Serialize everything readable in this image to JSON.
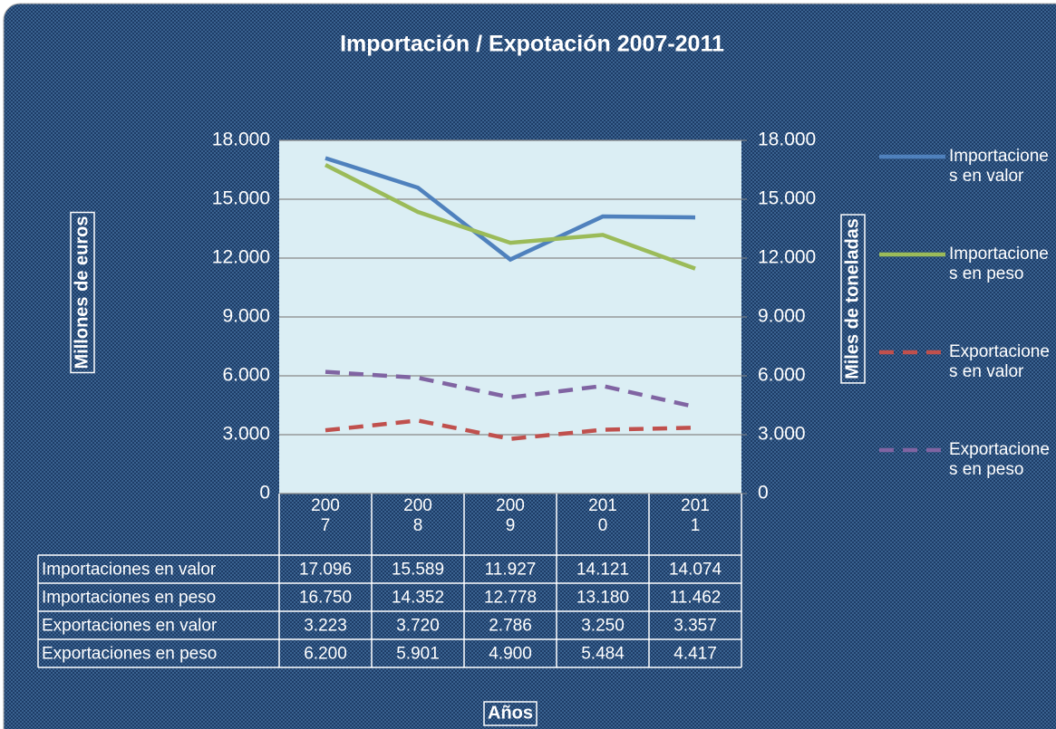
{
  "chart_data": {
    "type": "line",
    "title": "Importación / Expotación 2007-2011",
    "x_label": "Años",
    "y_label": "Millones de euros",
    "y2_label": "Miles de toneladas",
    "categories": [
      "2007",
      "2008",
      "2009",
      "2010",
      "2011"
    ],
    "series": [
      {
        "name": "Importaciones en valor",
        "color": "#4f81bd",
        "dashed": false,
        "values": [
          17096,
          15589,
          11927,
          14121,
          14074
        ],
        "value_labels": [
          "17.096",
          "15.589",
          "11.927",
          "14.121",
          "14.074"
        ]
      },
      {
        "name": "Importaciones en peso",
        "color": "#9bbb59",
        "dashed": false,
        "axis": "y2",
        "values": [
          16750,
          14352,
          12778,
          13180,
          11462
        ],
        "value_labels": [
          "16.750",
          "14.352",
          "12.778",
          "13.180",
          "11.462"
        ]
      },
      {
        "name": "Exportaciones en valor",
        "color": "#c0504d",
        "dashed": true,
        "values": [
          3223,
          3720,
          2786,
          3250,
          3357
        ],
        "value_labels": [
          "3.223",
          "3.720",
          "2.786",
          "3.250",
          "3.357"
        ]
      },
      {
        "name": "Exportaciones en peso",
        "color": "#8064a2",
        "dashed": true,
        "axis": "y2",
        "values": [
          6200,
          5901,
          4900,
          5484,
          4417
        ],
        "value_labels": [
          "6.200",
          "5.901",
          "4.900",
          "5.484",
          "4.417"
        ]
      }
    ],
    "ylim": [
      0,
      18000
    ],
    "yticks": [
      0,
      {
        "value": 3000,
        "label": "3.000"
      },
      {
        "value": 6000,
        "label": "6.000"
      },
      {
        "value": 9000,
        "label": "9.000"
      },
      {
        "value": 12000,
        "label": "12.000"
      },
      {
        "value": 15000,
        "label": "15.000"
      },
      {
        "value": 18000,
        "label": "18.000"
      }
    ],
    "y2lim": [
      0,
      18000
    ],
    "y2ticks": [
      0,
      {
        "value": 3000,
        "label": "3.000"
      },
      {
        "value": 6000,
        "label": "6.000"
      },
      {
        "value": 9000,
        "label": "9.000"
      },
      {
        "value": 12000,
        "label": "12.000"
      },
      {
        "value": 15000,
        "label": "15.000"
      },
      {
        "value": 18000,
        "label": "18.000"
      }
    ],
    "grid": true,
    "legend": "right",
    "data_table": true
  }
}
